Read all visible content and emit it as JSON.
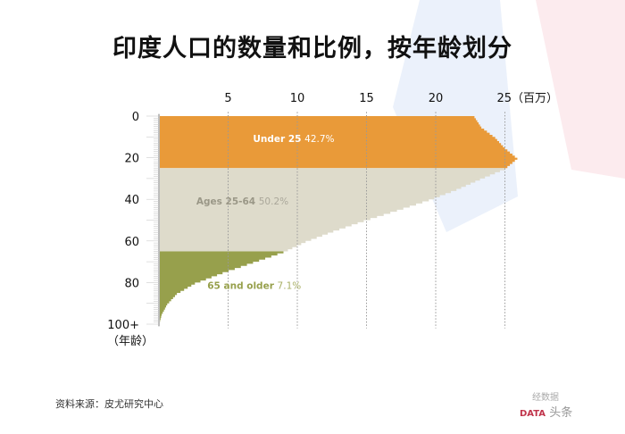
{
  "title": "印度人口的数量和比例，按年龄划分",
  "source": "资料来源：皮尤研究中心",
  "watermark": {
    "brand": "经数据",
    "tag": "DATA",
    "platform": "头条"
  },
  "colors": {
    "under25": "#e99a39",
    "ages25_64": "#dedbcb",
    "over65": "#97a04c",
    "grid": "#999999"
  },
  "chart_data": {
    "type": "area",
    "orientation": "horizontal population pyramid (one side)",
    "x_unit_label": "（百万）",
    "y_unit_label": "（年龄）",
    "x_ticks": [
      5,
      10,
      15,
      20,
      25
    ],
    "x_tick_labels": [
      "5",
      "10",
      "15",
      "20",
      "25（百万）"
    ],
    "y_ticks": [
      0,
      20,
      40,
      60,
      80,
      100
    ],
    "y_tick_labels": [
      "0",
      "20",
      "40",
      "60",
      "80",
      "100+"
    ],
    "xlim": [
      0,
      27
    ],
    "ylim": [
      0,
      100
    ],
    "grid": "vertical dotted",
    "ages": [
      0,
      5,
      10,
      15,
      20,
      25,
      30,
      35,
      40,
      45,
      50,
      55,
      60,
      65,
      70,
      75,
      80,
      85,
      90,
      95,
      100
    ],
    "population_millions": [
      22.8,
      23.3,
      24.3,
      25.0,
      25.9,
      25.0,
      23.2,
      21.5,
      19.5,
      17.2,
      14.8,
      12.6,
      10.6,
      9.0,
      6.8,
      4.6,
      2.6,
      1.3,
      0.6,
      0.2,
      0.0
    ],
    "segments": [
      {
        "name": "Under 25",
        "value": "42.7%",
        "from": 0,
        "to": 25
      },
      {
        "name": "Ages 25-64",
        "value": "50.2%",
        "from": 25,
        "to": 65
      },
      {
        "name": "65 and older",
        "value": "7.1%",
        "from": 65,
        "to": 100
      }
    ]
  }
}
